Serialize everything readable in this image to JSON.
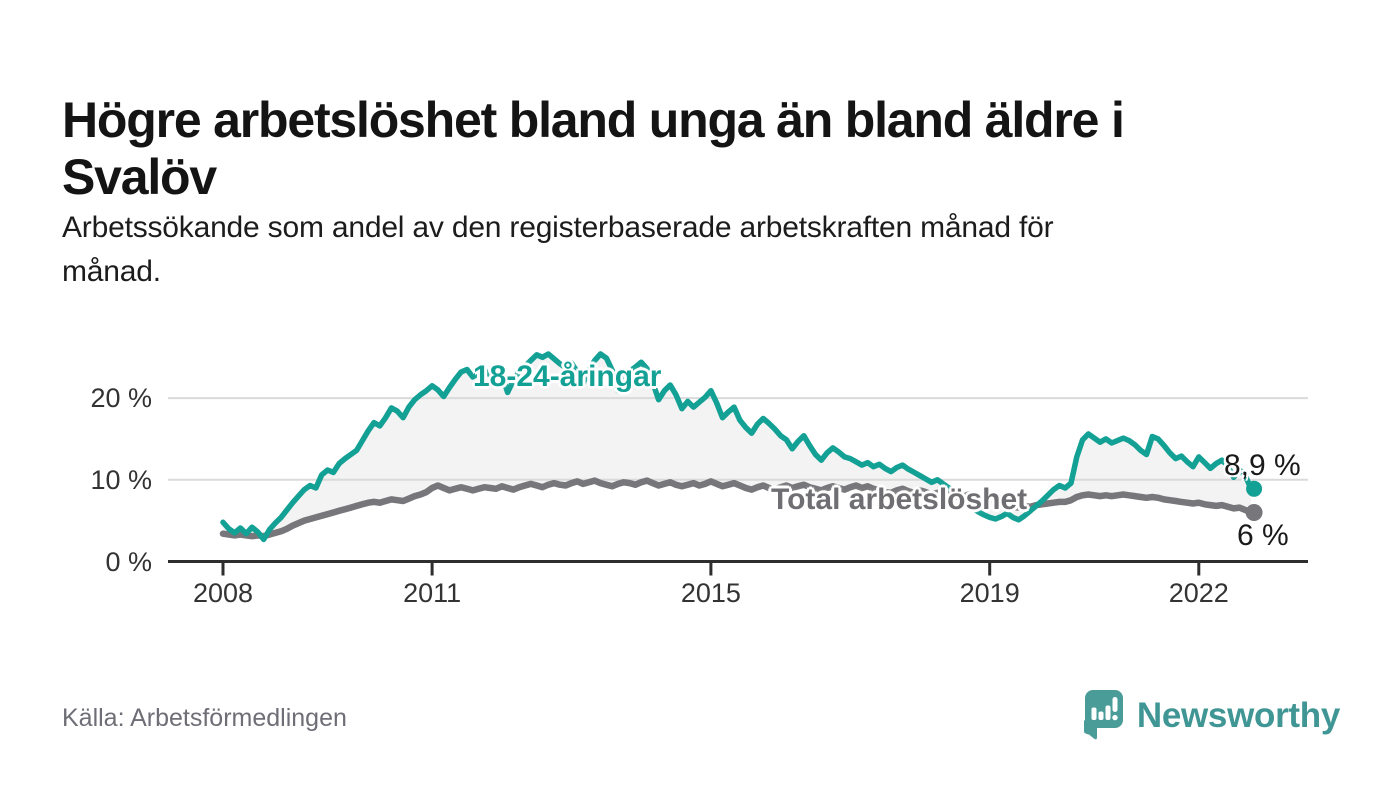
{
  "header": {
    "title_line1": "Högre arbetslöshet bland unga än bland äldre i",
    "title_line2": "Svalöv",
    "subtitle_line1": "Arbetssökande som andel av den registerbaserade arbetskraften månad för",
    "subtitle_line2": "månad."
  },
  "footer": {
    "source": "Källa: Arbetsförmedlingen",
    "brand": "Newsworthy"
  },
  "colors": {
    "accent_teal": "#13a095",
    "series_gray": "#77777b",
    "band_fill": "#f3f3f3",
    "gridline": "#dadada",
    "axis": "#2e2e2e",
    "tick_label": "#333333",
    "logo_teal": "#4a9c99",
    "logo_text_teal": "#3f9694"
  },
  "chart_data": {
    "type": "line",
    "unit": "%",
    "frequency": "monthly",
    "start": "2008-01",
    "end": "2022-10",
    "x_base_year": 2008,
    "x_ticks": [
      2008,
      2011,
      2015,
      2019,
      2022
    ],
    "y_ticks": [
      0,
      10,
      20
    ],
    "y_tick_suffix": " %",
    "ylim": [
      0,
      27
    ],
    "grid": true,
    "band_between_series": true,
    "series": [
      {
        "name": "18-24-åringar",
        "color": "#13a095",
        "end_label": "8,9 %",
        "end_value": 8.9,
        "values": [
          4.8,
          4.0,
          3.5,
          4.1,
          3.4,
          4.2,
          3.6,
          2.7,
          3.9,
          4.7,
          5.4,
          6.3,
          7.2,
          8.0,
          8.8,
          9.3,
          9.0,
          10.6,
          11.2,
          10.9,
          12.0,
          12.6,
          13.1,
          13.6,
          14.8,
          16.0,
          17.0,
          16.6,
          17.6,
          18.8,
          18.4,
          17.6,
          18.9,
          19.8,
          20.4,
          20.9,
          21.5,
          21.0,
          20.2,
          21.3,
          22.3,
          23.2,
          23.5,
          22.6,
          23.0,
          23.4,
          22.8,
          22.4,
          22.9,
          20.7,
          22.2,
          23.3,
          23.9,
          24.6,
          25.3,
          25.0,
          25.4,
          24.8,
          24.2,
          23.7,
          24.3,
          23.2,
          21.8,
          23.5,
          24.6,
          25.4,
          24.9,
          23.4,
          20.9,
          22.3,
          23.3,
          23.8,
          24.4,
          23.6,
          21.9,
          19.8,
          20.9,
          21.6,
          20.4,
          18.7,
          19.6,
          18.9,
          19.5,
          20.1,
          20.9,
          19.4,
          17.6,
          18.3,
          18.9,
          17.3,
          16.4,
          15.7,
          16.8,
          17.5,
          16.9,
          16.2,
          15.4,
          14.9,
          13.8,
          14.7,
          15.4,
          14.2,
          13.1,
          12.4,
          13.3,
          13.9,
          13.4,
          12.8,
          12.6,
          12.2,
          11.8,
          12.1,
          11.6,
          11.9,
          11.4,
          11.0,
          11.5,
          11.8,
          11.3,
          10.9,
          10.5,
          10.1,
          9.7,
          10.0,
          9.5,
          9.0,
          8.4,
          7.8,
          7.2,
          6.6,
          6.1,
          5.7,
          5.4,
          5.2,
          5.5,
          5.9,
          5.4,
          5.1,
          5.6,
          6.2,
          6.8,
          7.4,
          8.1,
          8.8,
          9.3,
          9.0,
          9.6,
          12.8,
          14.9,
          15.6,
          15.1,
          14.6,
          15.0,
          14.5,
          14.8,
          15.1,
          14.8,
          14.3,
          13.6,
          13.1,
          15.3,
          15.0,
          14.2,
          13.3,
          12.6,
          12.9,
          12.2,
          11.6,
          12.8,
          12.1,
          11.4,
          12.0,
          12.4,
          11.7,
          10.3,
          11.2,
          10.5,
          8.9
        ]
      },
      {
        "name": "Total arbetslöshet",
        "color": "#77777b",
        "end_label": "6 %",
        "end_value": 6.0,
        "values": [
          3.4,
          3.3,
          3.2,
          3.3,
          3.2,
          3.1,
          3.2,
          3.1,
          3.3,
          3.5,
          3.7,
          4.0,
          4.4,
          4.7,
          5.0,
          5.2,
          5.4,
          5.6,
          5.8,
          6.0,
          6.2,
          6.4,
          6.6,
          6.8,
          7.0,
          7.2,
          7.3,
          7.2,
          7.4,
          7.6,
          7.5,
          7.4,
          7.7,
          8.0,
          8.2,
          8.5,
          9.0,
          9.3,
          9.0,
          8.7,
          8.9,
          9.1,
          8.9,
          8.7,
          8.9,
          9.1,
          9.0,
          8.9,
          9.2,
          9.0,
          8.8,
          9.1,
          9.3,
          9.5,
          9.3,
          9.1,
          9.4,
          9.6,
          9.4,
          9.3,
          9.6,
          9.8,
          9.5,
          9.7,
          9.9,
          9.6,
          9.4,
          9.2,
          9.5,
          9.7,
          9.6,
          9.4,
          9.7,
          9.9,
          9.6,
          9.3,
          9.5,
          9.7,
          9.4,
          9.2,
          9.4,
          9.6,
          9.3,
          9.5,
          9.8,
          9.5,
          9.2,
          9.4,
          9.6,
          9.3,
          9.0,
          8.8,
          9.1,
          9.3,
          9.0,
          8.8,
          9.1,
          9.3,
          9.0,
          9.2,
          9.4,
          9.1,
          8.9,
          8.7,
          9.0,
          9.2,
          9.0,
          8.8,
          9.1,
          9.3,
          9.0,
          9.2,
          8.9,
          8.7,
          8.5,
          8.4,
          8.7,
          8.9,
          8.6,
          8.4,
          8.7,
          8.5,
          8.2,
          8.4,
          8.6,
          8.3,
          8.0,
          7.8,
          8.1,
          8.3,
          8.0,
          7.8,
          7.6,
          7.3,
          7.1,
          6.9,
          6.7,
          6.6,
          6.8,
          6.7,
          6.9,
          7.0,
          7.1,
          7.2,
          7.3,
          7.3,
          7.5,
          7.9,
          8.1,
          8.2,
          8.1,
          8.0,
          8.1,
          8.0,
          8.1,
          8.2,
          8.1,
          8.0,
          7.9,
          7.8,
          7.9,
          7.8,
          7.6,
          7.5,
          7.4,
          7.3,
          7.2,
          7.1,
          7.2,
          7.0,
          6.9,
          6.8,
          6.9,
          6.7,
          6.5,
          6.6,
          6.3,
          6.0
        ]
      }
    ]
  }
}
